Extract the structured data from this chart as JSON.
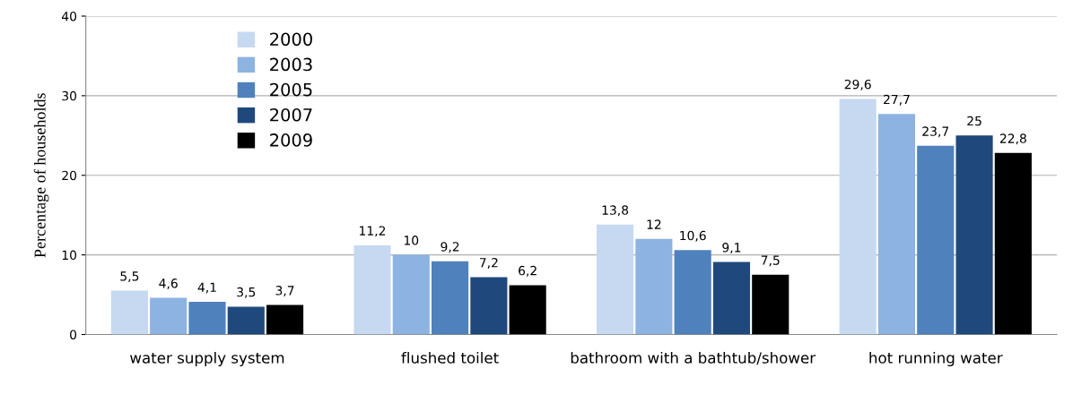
{
  "chart_data": {
    "type": "bar",
    "ylabel": "Percentage of households",
    "categories": [
      "water supply system",
      "flushed toilet",
      "bathroom with a bathtub/shower",
      "hot running water"
    ],
    "series": [
      {
        "name": "2000",
        "color": "#c6d9f1",
        "values": [
          5.5,
          11.2,
          13.8,
          29.6
        ],
        "value_labels": [
          "5,5",
          "11,2",
          "13,8",
          "29,6"
        ]
      },
      {
        "name": "2003",
        "color": "#8db3e2",
        "values": [
          4.6,
          10,
          12,
          27.7
        ],
        "value_labels": [
          "4,6",
          "10",
          "12",
          "27,7"
        ]
      },
      {
        "name": "2005",
        "color": "#4f81bd",
        "values": [
          4.1,
          9.2,
          10.6,
          23.7
        ],
        "value_labels": [
          "4,1",
          "9,2",
          "10,6",
          "23,7"
        ]
      },
      {
        "name": "2007",
        "color": "#1f497d",
        "values": [
          3.5,
          7.2,
          9.1,
          25
        ],
        "value_labels": [
          "3,5",
          "7,2",
          "9,1",
          "25"
        ]
      },
      {
        "name": "2009",
        "color": "#000000",
        "values": [
          3.7,
          6.2,
          7.5,
          22.8
        ],
        "value_labels": [
          "3,7",
          "6,2",
          "7,5",
          "22,8"
        ]
      }
    ],
    "ylim": [
      0,
      40
    ],
    "yticks": [
      0,
      10,
      20,
      30,
      40
    ],
    "grid": "y",
    "legend": "top left"
  }
}
